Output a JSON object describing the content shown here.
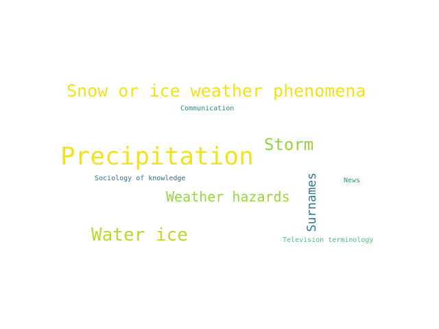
{
  "words": {
    "snow_or_ice": {
      "text": "Snow or ice weather phenomena",
      "color": "#f0e220"
    },
    "communication": {
      "text": "Communication",
      "color": "#2b8a8a"
    },
    "precipitation": {
      "text": "Precipitation",
      "color": "#f2e31f"
    },
    "storm": {
      "text": "Storm",
      "color": "#97d440"
    },
    "sociology": {
      "text": "Sociology of knowledge",
      "color": "#2f6f8e"
    },
    "news": {
      "text": "News",
      "color": "#2c9a8a"
    },
    "weather_hazards": {
      "text": "Weather hazards",
      "color": "#9ad63f"
    },
    "water_ice": {
      "text": "Water ice",
      "color": "#b7da2b"
    },
    "television": {
      "text": "Television terminology",
      "color": "#4cbf7a"
    },
    "surnames": {
      "text": "Surnames",
      "color": "#2d7892"
    }
  }
}
